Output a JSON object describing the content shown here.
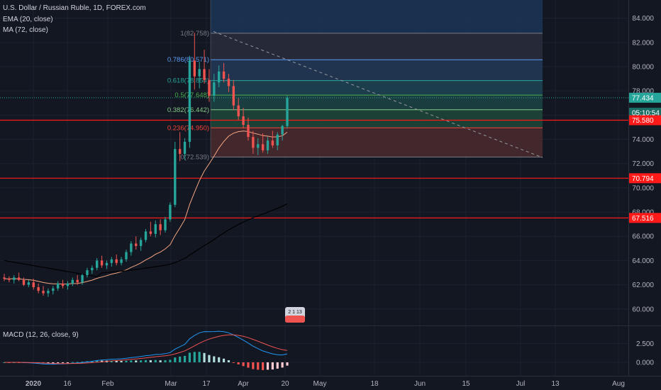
{
  "legend": {
    "title": "U.S. Dollar / Russian Ruble, 1D, FOREX.com",
    "ema": "EMA (20, close)",
    "ma": "MA (72, close)",
    "macd": "MACD (12, 26, close, 9)"
  },
  "colors": {
    "background": "#131722",
    "bull": "#26a69a",
    "bear": "#ef5350",
    "ema": "#f4a582",
    "ma": "#000000",
    "macd_line": "#2196f3",
    "signal_line": "#ef5350",
    "hline": "#ff1a1a"
  },
  "chart_data": {
    "type": "candlestick",
    "price_axis": {
      "ticks": [
        "84.000",
        "82.000",
        "80.000",
        "78.000",
        "76.000",
        "74.000",
        "72.000",
        "70.000",
        "68.000",
        "66.000",
        "64.000",
        "62.000",
        "60.000"
      ],
      "range": [
        58.7,
        85.5
      ]
    },
    "time_axis": {
      "ticks": [
        "2020",
        "16",
        "Feb",
        "Mar",
        "17",
        "Apr",
        "20",
        "May",
        "18",
        "Jun",
        "15",
        "Jul",
        "13",
        "Aug"
      ]
    },
    "macd_axis": {
      "ticks": [
        "2.500",
        "0.000"
      ]
    },
    "price_badges": [
      {
        "label": "77.434",
        "value": 77.434,
        "style": "current"
      },
      {
        "label": "05:10:54",
        "value": 76.2,
        "style": "timer"
      },
      {
        "label": "75.580",
        "value": 75.58,
        "style": "red"
      },
      {
        "label": "70.794",
        "value": 70.794,
        "style": "red"
      },
      {
        "label": "67.516",
        "value": 67.516,
        "style": "red"
      }
    ],
    "horizontal_lines": [
      75.58,
      70.794,
      67.516
    ],
    "fibonacci": [
      {
        "label": "1(82.758)",
        "value": 82.758
      },
      {
        "label": "0.786(80.571)",
        "value": 80.571
      },
      {
        "label": "0.618(78.854)",
        "value": 78.854
      },
      {
        "label": "0.5(77.648)",
        "value": 77.648
      },
      {
        "label": "0.382(76.442)",
        "value": 76.442
      },
      {
        "label": "0.236(74.950)",
        "value": 74.95
      },
      {
        "label": "0(72.539)",
        "value": 72.539
      }
    ],
    "events_badge": "2 1 13",
    "candles": [
      [
        62.6,
        62.9,
        62.3,
        62.5
      ],
      [
        62.5,
        62.7,
        62.2,
        62.4
      ],
      [
        62.4,
        62.8,
        62.1,
        62.6
      ],
      [
        62.6,
        63.0,
        62.3,
        62.4
      ],
      [
        62.4,
        62.6,
        61.9,
        62.0
      ],
      [
        62.0,
        62.4,
        61.8,
        62.2
      ],
      [
        62.2,
        62.5,
        61.6,
        61.8
      ],
      [
        61.8,
        62.1,
        61.3,
        61.5
      ],
      [
        61.5,
        61.9,
        61.1,
        61.3
      ],
      [
        61.3,
        61.7,
        61.0,
        61.5
      ],
      [
        61.5,
        61.9,
        61.2,
        61.7
      ],
      [
        61.7,
        62.3,
        61.5,
        62.1
      ],
      [
        62.1,
        62.4,
        61.7,
        61.9
      ],
      [
        61.9,
        62.3,
        61.6,
        62.1
      ],
      [
        62.1,
        62.6,
        61.9,
        62.4
      ],
      [
        62.4,
        62.8,
        62.0,
        62.2
      ],
      [
        62.2,
        62.9,
        62.0,
        62.8
      ],
      [
        62.8,
        63.4,
        62.6,
        63.2
      ],
      [
        63.2,
        63.6,
        62.9,
        63.4
      ],
      [
        63.4,
        64.2,
        63.2,
        64.0
      ],
      [
        64.0,
        64.4,
        63.4,
        63.6
      ],
      [
        63.6,
        64.0,
        63.3,
        63.8
      ],
      [
        63.8,
        64.3,
        63.5,
        64.1
      ],
      [
        64.1,
        64.5,
        63.6,
        63.8
      ],
      [
        63.8,
        64.3,
        63.6,
        64.1
      ],
      [
        64.1,
        64.9,
        63.9,
        64.7
      ],
      [
        64.7,
        65.6,
        64.4,
        65.4
      ],
      [
        65.4,
        66.0,
        64.9,
        65.2
      ],
      [
        65.2,
        65.9,
        64.8,
        65.7
      ],
      [
        65.7,
        66.6,
        65.5,
        66.4
      ],
      [
        66.4,
        67.2,
        66.0,
        66.2
      ],
      [
        66.2,
        67.3,
        65.9,
        67.0
      ],
      [
        67.0,
        67.4,
        66.1,
        66.5
      ],
      [
        66.5,
        67.6,
        66.3,
        67.4
      ],
      [
        67.4,
        68.8,
        67.2,
        68.6
      ],
      [
        68.6,
        73.8,
        68.4,
        73.2
      ],
      [
        73.2,
        74.6,
        72.2,
        72.8
      ],
      [
        72.8,
        74.1,
        72.3,
        73.8
      ],
      [
        73.8,
        80.9,
        73.3,
        80.5
      ],
      [
        80.5,
        82.8,
        78.1,
        79.2
      ],
      [
        79.2,
        80.4,
        78.2,
        79.8
      ],
      [
        79.8,
        81.4,
        78.6,
        78.9
      ],
      [
        78.9,
        79.8,
        77.1,
        77.6
      ],
      [
        77.6,
        79.4,
        77.1,
        78.7
      ],
      [
        78.7,
        80.1,
        78.3,
        79.6
      ],
      [
        79.6,
        80.3,
        78.7,
        79.0
      ],
      [
        79.0,
        79.4,
        77.9,
        78.4
      ],
      [
        78.4,
        78.9,
        76.4,
        76.8
      ],
      [
        76.8,
        77.4,
        75.6,
        75.9
      ],
      [
        75.9,
        76.6,
        74.9,
        75.2
      ],
      [
        75.2,
        75.8,
        73.9,
        74.2
      ],
      [
        74.2,
        74.7,
        72.8,
        73.3
      ],
      [
        73.3,
        74.1,
        72.7,
        73.6
      ],
      [
        73.6,
        74.5,
        72.9,
        73.1
      ],
      [
        73.1,
        74.2,
        72.8,
        73.9
      ],
      [
        73.9,
        74.7,
        73.3,
        73.5
      ],
      [
        73.5,
        74.6,
        73.1,
        74.4
      ],
      [
        74.4,
        75.2,
        73.9,
        75.1
      ],
      [
        75.1,
        77.6,
        74.9,
        77.43
      ]
    ]
  }
}
